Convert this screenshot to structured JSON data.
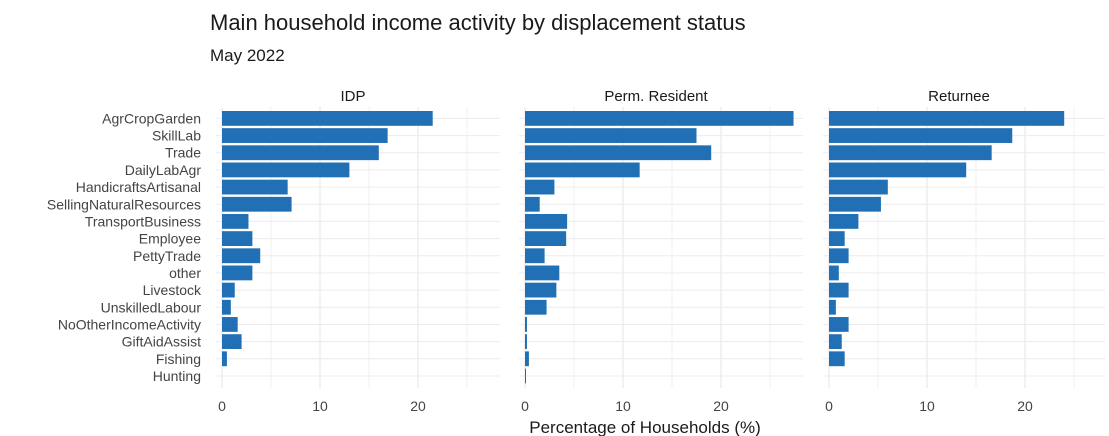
{
  "title": "Main household income activity by displacement status",
  "subtitle": "May 2022",
  "chart_data": {
    "type": "bar",
    "orientation": "horizontal",
    "title": "Main household income activity by displacement status",
    "subtitle": "May 2022",
    "xlabel": "Percentage of Households (%)",
    "ylabel": "",
    "xlim": [
      0,
      29
    ],
    "xticks": [
      0,
      10,
      20
    ],
    "grid": true,
    "bar_color": "#2170b5",
    "categories": [
      "AgrCropGarden",
      "SkillLab",
      "Trade",
      "DailyLabAgr",
      "HandicraftsArtisanal",
      "SellingNaturalResources",
      "TransportBusiness",
      "Employee",
      "PettyTrade",
      "other",
      "Livestock",
      "UnskilledLabour",
      "NoOtherIncomeActivity",
      "GiftAidAssist",
      "Fishing",
      "Hunting"
    ],
    "panels": [
      {
        "name": "IDP",
        "values": [
          21.5,
          16.9,
          16.0,
          13.0,
          6.7,
          7.1,
          2.7,
          3.1,
          3.9,
          3.1,
          1.3,
          0.9,
          1.6,
          2.0,
          0.5,
          0.0
        ]
      },
      {
        "name": "Perm. Resident",
        "values": [
          27.4,
          17.5,
          19.0,
          11.7,
          3.0,
          1.5,
          4.3,
          4.2,
          2.0,
          3.5,
          3.2,
          2.2,
          0.2,
          0.2,
          0.4,
          0.1
        ]
      },
      {
        "name": "Returnee",
        "values": [
          24.0,
          18.7,
          16.6,
          14.0,
          6.0,
          5.3,
          3.0,
          1.6,
          2.0,
          1.0,
          2.0,
          0.7,
          2.0,
          1.3,
          1.6,
          0.0
        ]
      }
    ]
  }
}
